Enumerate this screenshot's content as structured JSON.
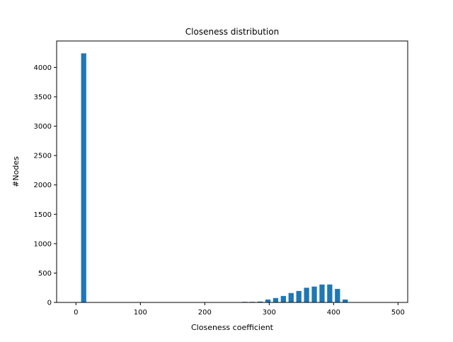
{
  "chart_data": {
    "type": "bar",
    "title": "Closeness distribution",
    "xlabel": "Closeness coefficient",
    "ylabel": "#Nodes",
    "xlim": [
      -30,
      515
    ],
    "ylim": [
      0,
      4450
    ],
    "xticks": [
      0,
      100,
      200,
      300,
      400,
      500
    ],
    "yticks": [
      0,
      500,
      1000,
      1500,
      2000,
      2500,
      3000,
      3500,
      4000
    ],
    "grid": false,
    "bar_width": 8,
    "bar_color": "#1f77b4",
    "x": [
      12,
      262,
      274,
      286,
      298,
      310,
      322,
      334,
      346,
      358,
      370,
      382,
      394,
      406,
      418
    ],
    "values": [
      4240,
      10,
      10,
      15,
      50,
      75,
      110,
      160,
      195,
      250,
      270,
      305,
      305,
      230,
      50
    ]
  }
}
